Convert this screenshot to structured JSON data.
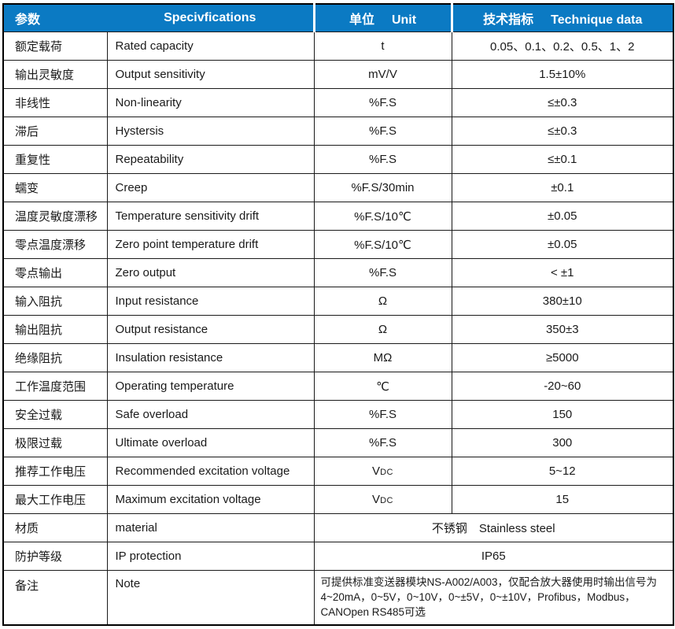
{
  "colors": {
    "header_bg": "#0b7ac3",
    "header_text": "#ffffff",
    "body_text": "#1a1a1a",
    "border": "#000000"
  },
  "header": {
    "param": "参数",
    "spec": "Specivfications",
    "unit_zh": "单位",
    "unit_en": "Unit",
    "data_zh": "技术指标",
    "data_en": "Technique data"
  },
  "rows": [
    {
      "zh": "额定载荷",
      "en": "Rated capacity",
      "unit": "t",
      "value": "0.05、0.1、0.2、0.5、1、2"
    },
    {
      "zh": "输出灵敏度",
      "en": "Output sensitivity",
      "unit": "mV/V",
      "value": "1.5±10%"
    },
    {
      "zh": "非线性",
      "en": "Non-linearity",
      "unit": "%F.S",
      "value": "≤±0.3"
    },
    {
      "zh": "滞后",
      "en": "Hystersis",
      "unit": "%F.S",
      "value": "≤±0.3"
    },
    {
      "zh": "重复性",
      "en": "Repeatability",
      "unit": "%F.S",
      "value": "≤±0.1"
    },
    {
      "zh": "蠕变",
      "en": "Creep",
      "unit": "%F.S/30min",
      "value": "±0.1"
    },
    {
      "zh": "温度灵敏度漂移",
      "en": "Temperature sensitivity drift",
      "unit": "%F.S/10℃",
      "value": "±0.05"
    },
    {
      "zh": "零点温度漂移",
      "en": "Zero point temperature drift",
      "unit": "%F.S/10℃",
      "value": "±0.05"
    },
    {
      "zh": "零点输出",
      "en": "Zero output",
      "unit": "%F.S",
      "value": "< ±1"
    },
    {
      "zh": "输入阻抗",
      "en": "Input resistance",
      "unit": "Ω",
      "value": "380±10"
    },
    {
      "zh": "输出阻抗",
      "en": "Output resistance",
      "unit": "Ω",
      "value": "350±3"
    },
    {
      "zh": "绝缘阻抗",
      "en": "Insulation resistance",
      "unit": "MΩ",
      "value": "≥5000"
    },
    {
      "zh": "工作温度范围",
      "en": "Operating temperature",
      "unit": "℃",
      "value": "-20~60"
    },
    {
      "zh": "安全过载",
      "en": "Safe overload",
      "unit": "%F.S",
      "value": "150"
    },
    {
      "zh": "极限过载",
      "en": "Ultimate overload",
      "unit": "%F.S",
      "value": "300"
    },
    {
      "zh": "推荐工作电压",
      "en": "Recommended excitation voltage",
      "unit": "V",
      "unit_suffix": "DC",
      "value": "5~12"
    },
    {
      "zh": "最大工作电压",
      "en": "Maximum excitation voltage",
      "unit": "V",
      "unit_suffix": "DC",
      "value": "15"
    },
    {
      "zh": "材质",
      "en": "material",
      "merged": true,
      "value": "不锈钢　Stainless steel"
    },
    {
      "zh": "防护等级",
      "en": "IP protection",
      "merged": true,
      "value": "IP65"
    },
    {
      "zh": "备注",
      "en": "Note",
      "merged": true,
      "tall": true,
      "lines": [
        "可提供标准变送器模块NS-A002/A003，仅配合放大器使用时输出信号为",
        "4~20mA，0~5V，0~10V，0~±5V，0~±10V，Profibus，Modbus，",
        "CANOpen  RS485可选"
      ]
    }
  ]
}
